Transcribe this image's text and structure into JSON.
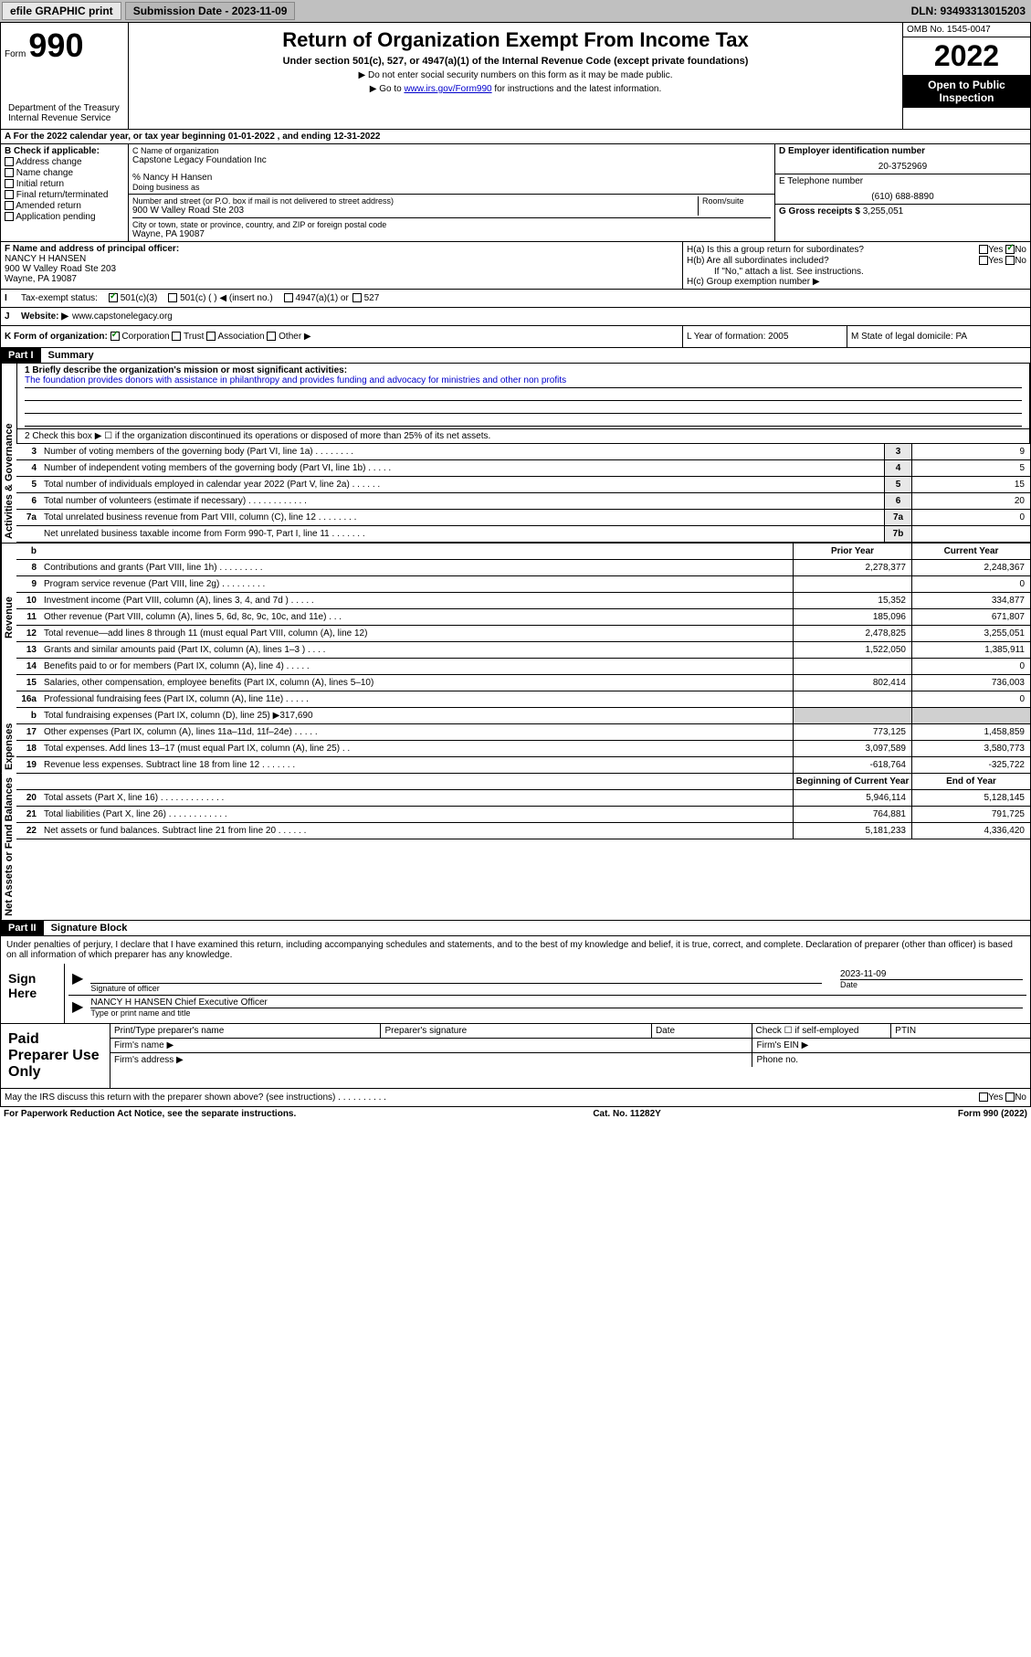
{
  "topbar": {
    "efile": "efile GRAPHIC print",
    "submission_label": "Submission Date - 2023-11-09",
    "dln": "DLN: 93493313015203"
  },
  "header": {
    "form_label": "Form",
    "form_num": "990",
    "title": "Return of Organization Exempt From Income Tax",
    "subtitle": "Under section 501(c), 527, or 4947(a)(1) of the Internal Revenue Code (except private foundations)",
    "instr1": "▶ Do not enter social security numbers on this form as it may be made public.",
    "instr2_pre": "▶ Go to ",
    "instr2_link": "www.irs.gov/Form990",
    "instr2_post": " for instructions and the latest information.",
    "dept": "Department of the Treasury\nInternal Revenue Service",
    "omb": "OMB No. 1545-0047",
    "year": "2022",
    "inspection": "Open to Public Inspection"
  },
  "line_a": "A For the 2022 calendar year, or tax year beginning 01-01-2022   , and ending 12-31-2022",
  "box_b": {
    "label": "B Check if applicable:",
    "opts": [
      "Address change",
      "Name change",
      "Initial return",
      "Final return/terminated",
      "Amended return",
      "Application pending"
    ]
  },
  "box_c": {
    "label": "C Name of organization",
    "name": "Capstone Legacy Foundation Inc",
    "care_of": "% Nancy H Hansen",
    "dba_label": "Doing business as",
    "addr_label": "Number and street (or P.O. box if mail is not delivered to street address)",
    "room_label": "Room/suite",
    "addr": "900 W Valley Road Ste 203",
    "city_label": "City or town, state or province, country, and ZIP or foreign postal code",
    "city": "Wayne, PA  19087"
  },
  "box_d": {
    "label": "D Employer identification number",
    "value": "20-3752969"
  },
  "box_e": {
    "label": "E Telephone number",
    "value": "(610) 688-8890"
  },
  "box_g": {
    "label": "G Gross receipts $",
    "value": "3,255,051"
  },
  "box_f": {
    "label": "F Name and address of principal officer:",
    "name": "NANCY H HANSEN",
    "addr1": "900 W Valley Road Ste 203",
    "addr2": "Wayne, PA  19087"
  },
  "box_h": {
    "ha": "H(a)  Is this a group return for subordinates?",
    "hb": "H(b)  Are all subordinates included?",
    "hb_note": "If \"No,\" attach a list. See instructions.",
    "hc": "H(c)  Group exemption number ▶",
    "yes": "Yes",
    "no": "No"
  },
  "box_i": {
    "label": "Tax-exempt status:",
    "opts": [
      "501(c)(3)",
      "501(c) (  ) ◀ (insert no.)",
      "4947(a)(1) or",
      "527"
    ]
  },
  "box_j": {
    "label": "Website: ▶",
    "value": "www.capstonelegacy.org"
  },
  "box_k": {
    "label": "K Form of organization:",
    "opts": [
      "Corporation",
      "Trust",
      "Association",
      "Other ▶"
    ]
  },
  "box_l": {
    "label": "L Year of formation:",
    "value": "2005"
  },
  "box_m": {
    "label": "M State of legal domicile:",
    "value": "PA"
  },
  "parts": {
    "part1": "Part I",
    "summary": "Summary",
    "part2": "Part II",
    "sigblock": "Signature Block"
  },
  "mission": {
    "label": "1  Briefly describe the organization's mission or most significant activities:",
    "text": "The foundation provides donors with assistance in philanthropy and provides funding and advocacy for ministries and other non profits"
  },
  "line2": "2   Check this box ▶ ☐  if the organization discontinued its operations or disposed of more than 25% of its net assets.",
  "verticals": {
    "gov": "Activities & Governance",
    "rev": "Revenue",
    "exp": "Expenses",
    "net": "Net Assets or Fund Balances"
  },
  "gov_rows": [
    {
      "n": "3",
      "label": "Number of voting members of the governing body (Part VI, line 1a)  .   .   .   .   .   .   .   .",
      "box": "3",
      "val": "9"
    },
    {
      "n": "4",
      "label": "Number of independent voting members of the governing body (Part VI, line 1b)  .   .   .   .   .",
      "box": "4",
      "val": "5"
    },
    {
      "n": "5",
      "label": "Total number of individuals employed in calendar year 2022 (Part V, line 2a)  .   .   .   .   .   .",
      "box": "5",
      "val": "15"
    },
    {
      "n": "6",
      "label": "Total number of volunteers (estimate if necessary)  .   .   .   .   .   .   .   .   .   .   .   .",
      "box": "6",
      "val": "20"
    },
    {
      "n": "7a",
      "label": "Total unrelated business revenue from Part VIII, column (C), line 12  .   .   .   .   .   .   .   .",
      "box": "7a",
      "val": "0"
    },
    {
      "n": "",
      "label": "Net unrelated business taxable income from Form 990-T, Part I, line 11  .   .   .   .   .   .   .",
      "box": "7b",
      "val": ""
    }
  ],
  "col_hdrs": {
    "b": "b",
    "prior": "Prior Year",
    "current": "Current Year",
    "boy": "Beginning of Current Year",
    "eoy": "End of Year"
  },
  "rev_rows": [
    {
      "n": "8",
      "label": "Contributions and grants (Part VIII, line 1h)  .   .   .   .   .   .   .   .   .",
      "py": "2,278,377",
      "cy": "2,248,367"
    },
    {
      "n": "9",
      "label": "Program service revenue (Part VIII, line 2g)  .   .   .   .   .   .   .   .   .",
      "py": "",
      "cy": "0"
    },
    {
      "n": "10",
      "label": "Investment income (Part VIII, column (A), lines 3, 4, and 7d )  .   .   .   .   .",
      "py": "15,352",
      "cy": "334,877"
    },
    {
      "n": "11",
      "label": "Other revenue (Part VIII, column (A), lines 5, 6d, 8c, 9c, 10c, and 11e)   .   .   .",
      "py": "185,096",
      "cy": "671,807"
    },
    {
      "n": "12",
      "label": "Total revenue—add lines 8 through 11 (must equal Part VIII, column (A), line 12)",
      "py": "2,478,825",
      "cy": "3,255,051"
    }
  ],
  "exp_rows": [
    {
      "n": "13",
      "label": "Grants and similar amounts paid (Part IX, column (A), lines 1–3 )  .   .   .   .",
      "py": "1,522,050",
      "cy": "1,385,911"
    },
    {
      "n": "14",
      "label": "Benefits paid to or for members (Part IX, column (A), line 4)  .   .   .   .   .",
      "py": "",
      "cy": "0"
    },
    {
      "n": "15",
      "label": "Salaries, other compensation, employee benefits (Part IX, column (A), lines 5–10)",
      "py": "802,414",
      "cy": "736,003"
    },
    {
      "n": "16a",
      "label": "Professional fundraising fees (Part IX, column (A), line 11e)  .   .   .   .   .",
      "py": "",
      "cy": "0"
    },
    {
      "n": "b",
      "label": "Total fundraising expenses (Part IX, column (D), line 25) ▶317,690",
      "py": null,
      "cy": null
    },
    {
      "n": "17",
      "label": "Other expenses (Part IX, column (A), lines 11a–11d, 11f–24e)  .   .   .   .   .",
      "py": "773,125",
      "cy": "1,458,859"
    },
    {
      "n": "18",
      "label": "Total expenses. Add lines 13–17 (must equal Part IX, column (A), line 25)  .   .",
      "py": "3,097,589",
      "cy": "3,580,773"
    },
    {
      "n": "19",
      "label": "Revenue less expenses. Subtract line 18 from line 12  .   .   .   .   .   .   .",
      "py": "-618,764",
      "cy": "-325,722"
    }
  ],
  "net_rows": [
    {
      "n": "20",
      "label": "Total assets (Part X, line 16)  .   .   .   .   .   .   .   .   .   .   .   .   .",
      "py": "5,946,114",
      "cy": "5,128,145"
    },
    {
      "n": "21",
      "label": "Total liabilities (Part X, line 26)  .   .   .   .   .   .   .   .   .   .   .   .",
      "py": "764,881",
      "cy": "791,725"
    },
    {
      "n": "22",
      "label": "Net assets or fund balances. Subtract line 21 from line 20  .   .   .   .   .   .",
      "py": "5,181,233",
      "cy": "4,336,420"
    }
  ],
  "sig": {
    "penalty": "Under penalties of perjury, I declare that I have examined this return, including accompanying schedules and statements, and to the best of my knowledge and belief, it is true, correct, and complete. Declaration of preparer (other than officer) is based on all information of which preparer has any knowledge.",
    "sign_here": "Sign Here",
    "sig_officer": "Signature of officer",
    "date_label": "Date",
    "date": "2023-11-09",
    "name_title": "NANCY H HANSEN  Chief Executive Officer",
    "type_name": "Type or print name and title"
  },
  "prep": {
    "title": "Paid Preparer Use Only",
    "pt_name": "Print/Type preparer's name",
    "sig": "Preparer's signature",
    "date": "Date",
    "check_self": "Check ☐ if self-employed",
    "ptin": "PTIN",
    "firm_name": "Firm's name  ▶",
    "firm_ein": "Firm's EIN ▶",
    "firm_addr": "Firm's address ▶",
    "phone": "Phone no."
  },
  "footer": {
    "discuss": "May the IRS discuss this return with the preparer shown above? (see instructions)   .   .   .   .   .   .   .   .   .   .",
    "yes": "Yes",
    "no": "No",
    "paperwork": "For Paperwork Reduction Act Notice, see the separate instructions.",
    "cat": "Cat. No. 11282Y",
    "form": "Form 990 (2022)"
  },
  "colors": {
    "link": "#0000cc",
    "check": "#008000",
    "shade": "#d0d0d0"
  }
}
